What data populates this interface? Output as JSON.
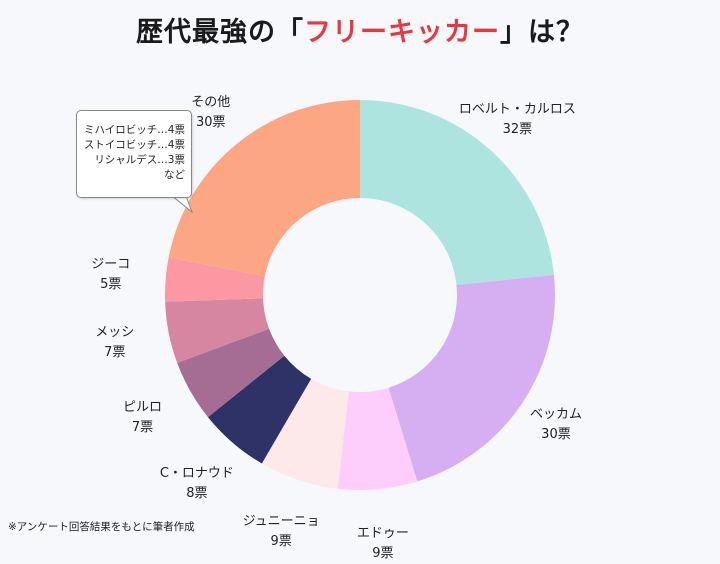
{
  "title": {
    "part1": "歴代最強の「",
    "highlight": "フリーキッカー",
    "part2": "」は？"
  },
  "footnote": "※アンケート回答結果をもとに筆者作成",
  "callout": {
    "lines": [
      "ミハイロビッチ…4票",
      "ストイコビッチ…4票",
      "リシャルデス…3票",
      "など"
    ]
  },
  "chart_data": {
    "type": "pie",
    "donut": true,
    "unit": "票",
    "slices": [
      {
        "name": "ロベルト・カルロス",
        "value": 32,
        "value_label": "32票",
        "color": "#ade4e0"
      },
      {
        "name": "ベッカム",
        "value": 30,
        "value_label": "30票",
        "color": "#d6aff3"
      },
      {
        "name": "エドゥー",
        "value": 9,
        "value_label": "9票",
        "color": "#fdcdfb"
      },
      {
        "name": "ジュニーニョ",
        "value": 9,
        "value_label": "9票",
        "color": "#fde8ea"
      },
      {
        "name": "C・ロナウド",
        "value": 8,
        "value_label": "8票",
        "color": "#2e3266"
      },
      {
        "name": "ピルロ",
        "value": 7,
        "value_label": "7票",
        "color": "#a56d94"
      },
      {
        "name": "メッシ",
        "value": 7,
        "value_label": "7票",
        "color": "#d786a1"
      },
      {
        "name": "ジーコ",
        "value": 5,
        "value_label": "5票",
        "color": "#fc98a2"
      },
      {
        "name": "その他",
        "value": 30,
        "value_label": "30票",
        "color": "#fda684"
      }
    ]
  }
}
